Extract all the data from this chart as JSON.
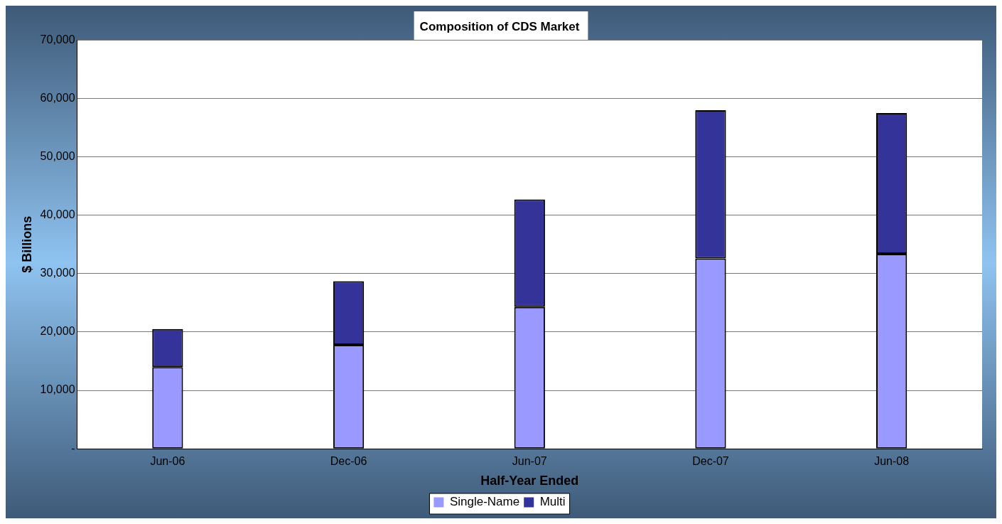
{
  "chart_data": {
    "type": "bar",
    "title": "Composition of CDS Market",
    "xlabel": "Half-Year Ended",
    "ylabel": "$ Billions",
    "categories": [
      "Jun-06",
      "Dec-06",
      "Jun-07",
      "Dec-07",
      "Jun-08"
    ],
    "series": [
      {
        "name": "Single-Name",
        "color": "#9999ff",
        "values": [
          14000,
          17800,
          24300,
          32600,
          33400
        ]
      },
      {
        "name": "Multi",
        "color": "#333399",
        "values": [
          6500,
          10900,
          18400,
          25400,
          24100
        ]
      }
    ],
    "stacked": true,
    "ylim": [
      0,
      70000
    ],
    "yticks": [
      {
        "value": 0,
        "label": "-"
      },
      {
        "value": 10000,
        "label": "10,000"
      },
      {
        "value": 20000,
        "label": "20,000"
      },
      {
        "value": 30000,
        "label": "30,000"
      },
      {
        "value": 40000,
        "label": "40,000"
      },
      {
        "value": 50000,
        "label": "50,000"
      },
      {
        "value": 60000,
        "label": "60,000"
      },
      {
        "value": 70000,
        "label": "70,000"
      }
    ],
    "grid": "y",
    "legend": "bottom"
  }
}
